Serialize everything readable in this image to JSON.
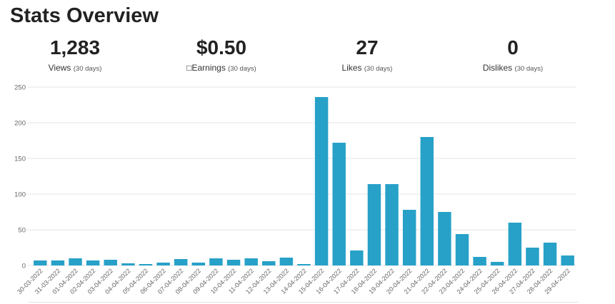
{
  "page_title": "Stats Overview",
  "stats": [
    {
      "value": "1,283",
      "label": "Views",
      "period": "(30 days)"
    },
    {
      "value": "$0.50",
      "label": "□Earnings",
      "period": "(30 days)"
    },
    {
      "value": "27",
      "label": "Likes",
      "period": "(30 days)"
    },
    {
      "value": "0",
      "label": "Dislikes",
      "period": "(30 days)"
    }
  ],
  "chart_data": {
    "type": "bar",
    "categories": [
      "30-03-2022",
      "31-03-2022",
      "01-04-2022",
      "02-04-2022",
      "03-04-2022",
      "04-04-2022",
      "05-04-2022",
      "06-04-2022",
      "07-04-2022",
      "08-04-2022",
      "09-04-2022",
      "10-04-2022",
      "11-04-2022",
      "12-04-2022",
      "13-04-2022",
      "14-04-2022",
      "15-04-2022",
      "16-04-2022",
      "17-04-2022",
      "18-04-2022",
      "19-04-2022",
      "20-04-2022",
      "21-04-2022",
      "22-04-2022",
      "23-04-2022",
      "24-04-2022",
      "25-04-2022",
      "26-04-2022",
      "27-04-2022",
      "28-04-2022",
      "29-04-2022"
    ],
    "values": [
      7,
      7,
      10,
      7,
      8,
      3,
      2,
      4,
      9,
      4,
      10,
      8,
      10,
      6,
      11,
      2,
      236,
      172,
      21,
      114,
      114,
      78,
      180,
      75,
      44,
      12,
      5,
      60,
      25,
      32,
      14
    ],
    "ylim": [
      0,
      250
    ],
    "yticks": [
      0,
      50,
      100,
      150,
      200,
      250
    ],
    "grid": true,
    "legend": "none",
    "bar_color": "#27a1c8",
    "grid_color": "#e6e6e6",
    "tick_color": "#666666"
  }
}
